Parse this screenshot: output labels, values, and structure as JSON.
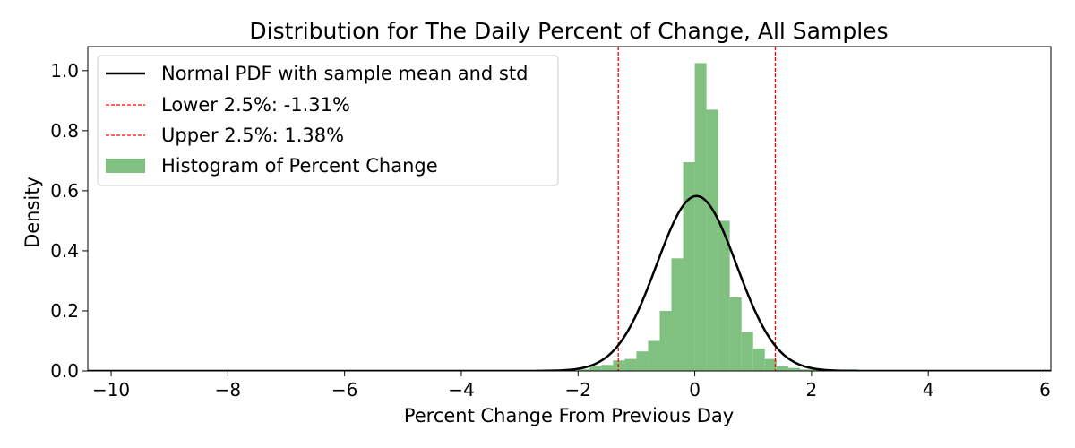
{
  "chart_data": {
    "type": "bar",
    "title": "Distribution for The Daily Percent of Change, All Samples",
    "xlabel": "Percent Change From Previous Day",
    "ylabel": "Density",
    "xlim": [
      -10.4,
      6.1
    ],
    "ylim": [
      0,
      1.08
    ],
    "x_ticks": [
      -10,
      -8,
      -6,
      -4,
      -2,
      0,
      2,
      4,
      6
    ],
    "x_tick_labels": [
      "−10",
      "−8",
      "−6",
      "−4",
      "−2",
      "0",
      "2",
      "4",
      "6"
    ],
    "y_ticks": [
      0.0,
      0.2,
      0.4,
      0.6,
      0.8,
      1.0
    ],
    "y_tick_labels": [
      "0.0",
      "0.2",
      "0.4",
      "0.6",
      "0.8",
      "1.0"
    ],
    "grid": false,
    "legend_position": "top-left",
    "histogram": {
      "name": "Histogram of Percent Change",
      "color": "#80c080",
      "bin_width": 0.2,
      "bins": [
        {
          "x0": -2.6,
          "value": 0.005
        },
        {
          "x0": -2.4,
          "value": 0.005
        },
        {
          "x0": -2.2,
          "value": 0.0
        },
        {
          "x0": -2.0,
          "value": 0.005
        },
        {
          "x0": -1.8,
          "value": 0.015
        },
        {
          "x0": -1.6,
          "value": 0.02
        },
        {
          "x0": -1.4,
          "value": 0.035
        },
        {
          "x0": -1.2,
          "value": 0.04
        },
        {
          "x0": -1.0,
          "value": 0.065
        },
        {
          "x0": -0.8,
          "value": 0.1
        },
        {
          "x0": -0.6,
          "value": 0.2
        },
        {
          "x0": -0.4,
          "value": 0.375
        },
        {
          "x0": -0.2,
          "value": 0.695
        },
        {
          "x0": 0.0,
          "value": 1.025
        },
        {
          "x0": 0.2,
          "value": 0.87
        },
        {
          "x0": 0.4,
          "value": 0.5
        },
        {
          "x0": 0.6,
          "value": 0.245
        },
        {
          "x0": 0.8,
          "value": 0.13
        },
        {
          "x0": 1.0,
          "value": 0.075
        },
        {
          "x0": 1.2,
          "value": 0.04
        },
        {
          "x0": 1.4,
          "value": 0.015
        },
        {
          "x0": 1.6,
          "value": 0.01
        },
        {
          "x0": 1.8,
          "value": 0.005
        },
        {
          "x0": 2.0,
          "value": 0.005
        },
        {
          "x0": 2.2,
          "value": 0.0
        },
        {
          "x0": 2.4,
          "value": 0.003
        },
        {
          "x0": 2.6,
          "value": 0.005
        }
      ]
    },
    "normal_pdf": {
      "name": "Normal PDF with sample mean and std",
      "mean": 0.03,
      "std": 0.685,
      "color": "#000000"
    },
    "lines": [
      {
        "name": "Lower 2.5%: -1.31%",
        "x": -1.31,
        "color": "#ff0000"
      },
      {
        "name": "Upper 2.5%: 1.38%",
        "x": 1.38,
        "color": "#ff0000"
      }
    ]
  }
}
